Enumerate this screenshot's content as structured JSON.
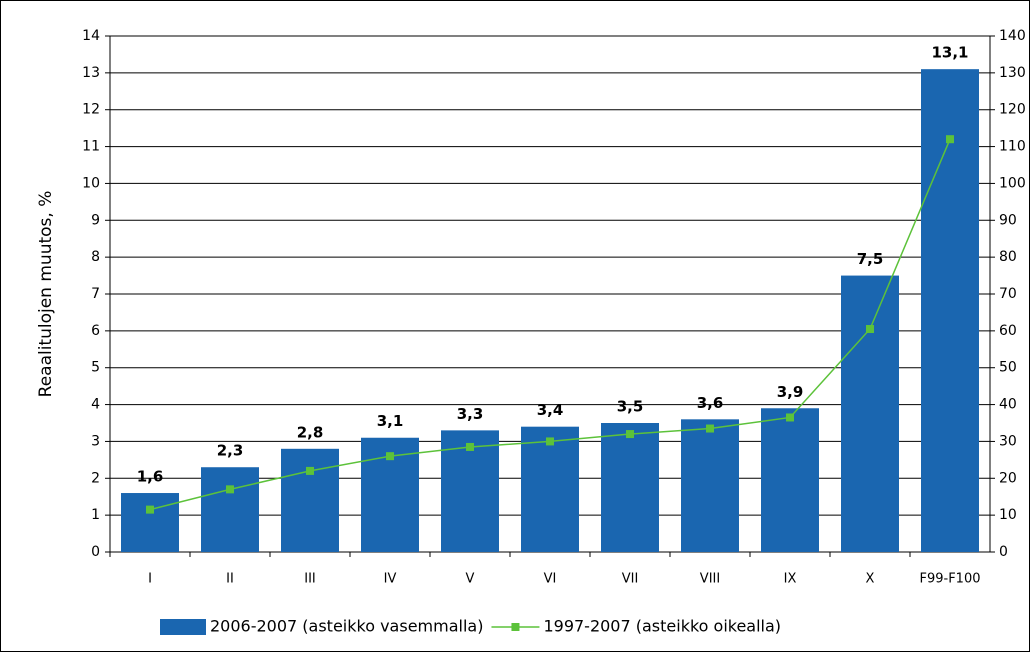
{
  "chart_data": {
    "type": "bar",
    "y_label": "Reaalitulojen muutos, %",
    "categories": [
      "I",
      "II",
      "III",
      "IV",
      "V",
      "VI",
      "VII",
      "VIII",
      "IX",
      "X",
      "F99-F100"
    ],
    "series": [
      {
        "name": "2006-2007 (asteikko vasemmalla)",
        "type": "bar",
        "color": "#1a66b0",
        "values": [
          1.6,
          2.3,
          2.8,
          3.1,
          3.3,
          3.4,
          3.5,
          3.6,
          3.9,
          7.5,
          13.1
        ],
        "value_labels": [
          "1,6",
          "2,3",
          "2,8",
          "3,1",
          "3,3",
          "3,4",
          "3,5",
          "3,6",
          "3,9",
          "7,5",
          "13,1"
        ]
      },
      {
        "name": "1997-2007 (asteikko oikealla)",
        "type": "line",
        "axis": "y2",
        "color": "#5cc23a",
        "values": [
          11.5,
          17,
          22,
          26,
          28.5,
          30,
          32,
          33.5,
          36.5,
          60.5,
          112
        ]
      }
    ],
    "ylim": [
      0,
      14
    ],
    "yticks": [
      0,
      1,
      2,
      3,
      4,
      5,
      6,
      7,
      8,
      9,
      10,
      11,
      12,
      13,
      14
    ],
    "y2lim": [
      0,
      140
    ],
    "y2ticks": [
      0,
      10,
      20,
      30,
      40,
      50,
      60,
      70,
      80,
      90,
      100,
      110,
      120,
      130,
      140
    ],
    "grid": true,
    "legend": "bottom"
  }
}
